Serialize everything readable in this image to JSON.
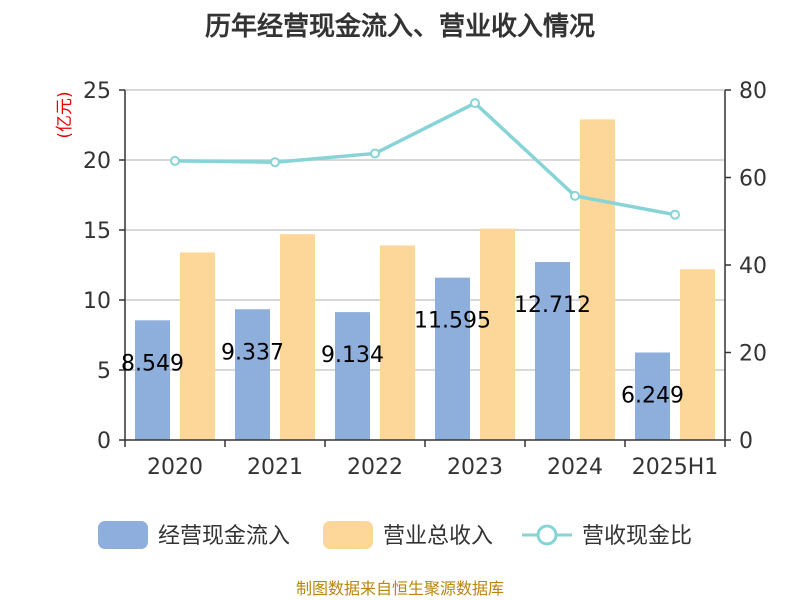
{
  "chart_data": {
    "type": "bar",
    "title": "历年经营现金流入、营业收入情况",
    "categories": [
      "2020",
      "2021",
      "2022",
      "2023",
      "2024",
      "2025H1"
    ],
    "series": [
      {
        "name": "经营现金流入",
        "type": "bar",
        "axis": "left",
        "color": "#8eaedb",
        "values": [
          8.549,
          9.337,
          9.134,
          11.595,
          12.712,
          6.249
        ],
        "labels": [
          "8.549",
          "9.337",
          "9.134",
          "11.595",
          "12.712",
          "6.249"
        ]
      },
      {
        "name": "营业总收入",
        "type": "bar",
        "axis": "left",
        "color": "#fdd699",
        "values": [
          13.4,
          14.7,
          13.9,
          15.1,
          22.9,
          12.2
        ]
      },
      {
        "name": "营收现金比",
        "type": "line",
        "axis": "right",
        "color": "#86d4d6",
        "values": [
          63.8,
          63.5,
          65.5,
          77.0,
          55.8,
          51.5
        ]
      }
    ],
    "y_left": {
      "unit": "(亿元)",
      "ylim": [
        0,
        25
      ],
      "ticks": [
        "0",
        "5",
        "10",
        "15",
        "20",
        "25"
      ]
    },
    "y_right": {
      "ylim": [
        0,
        80
      ],
      "ticks": [
        "0",
        "20",
        "40",
        "60",
        "80"
      ]
    },
    "grid": true,
    "legend": "bottom"
  },
  "source": "制图数据来自恒生聚源数据库"
}
